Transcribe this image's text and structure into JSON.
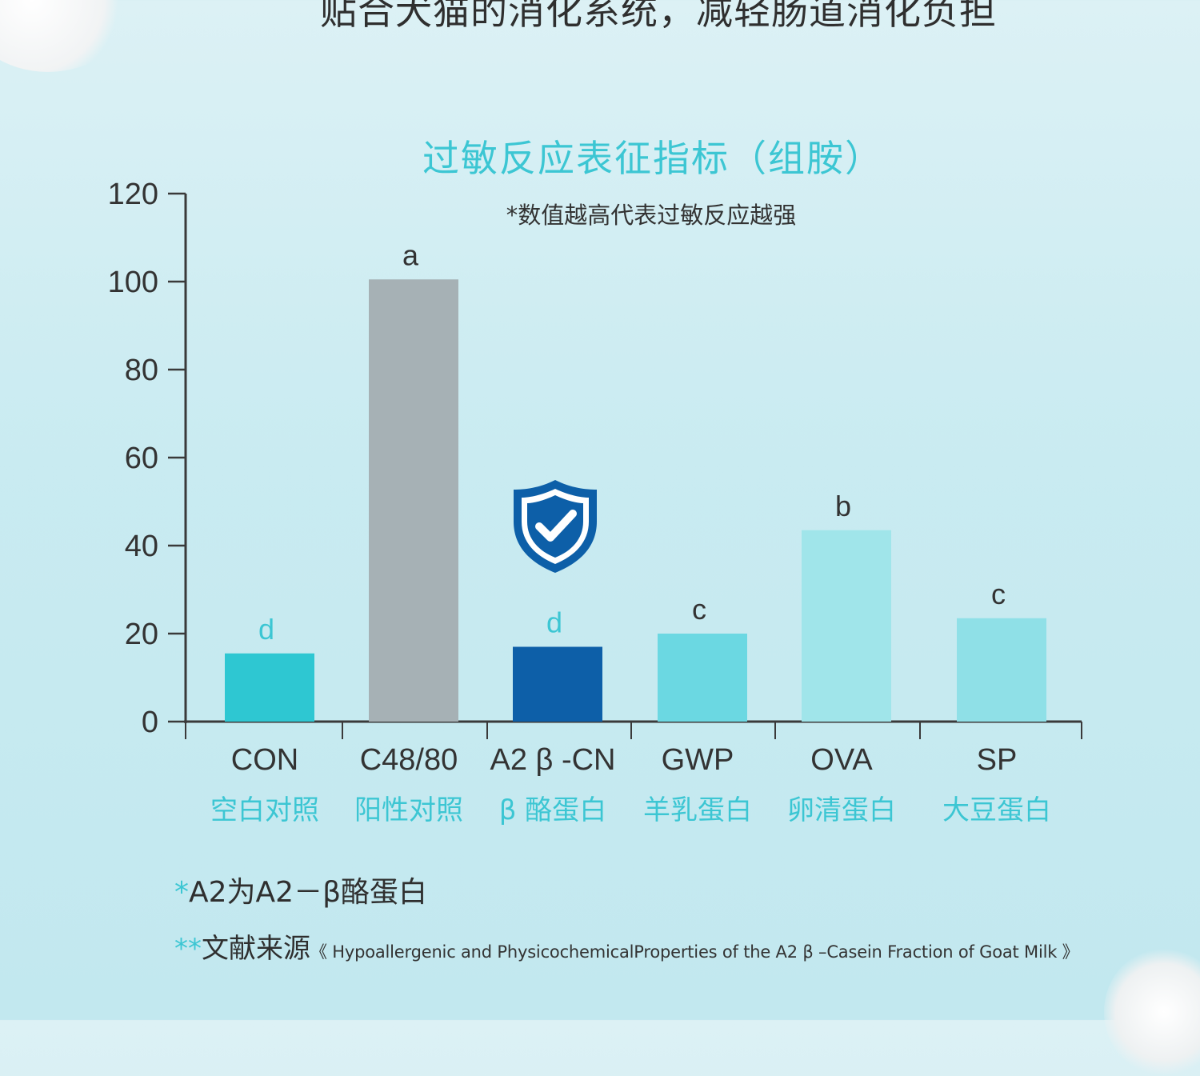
{
  "page": {
    "top_headline": "贴合犬猫的消化系统，减轻肠道消化负担"
  },
  "icons": {
    "shield": "shield-check-icon"
  },
  "colors": {
    "title": "#3cc6d3",
    "axis": "#3a3a3a"
  },
  "chart_data": {
    "type": "bar",
    "title": "过敏反应表征指标（组胺）",
    "subtitle": "*数值越高代表过敏反应越强",
    "xlabel": "",
    "ylabel": "",
    "ylim": [
      0,
      120
    ],
    "yticks": [
      "0",
      "20",
      "40",
      "60",
      "80",
      "100",
      "120"
    ],
    "grid": false,
    "categories": [
      "CON",
      "C48/80",
      "A2 β -CN",
      "GWP",
      "OVA",
      "SP"
    ],
    "category_sublabels": [
      "空白对照",
      "阳性对照",
      "β 酪蛋白",
      "羊乳蛋白",
      "卵清蛋白",
      "大豆蛋白"
    ],
    "values": [
      15.5,
      100.5,
      17,
      20,
      43.5,
      23.5
    ],
    "significance_letters": [
      "d",
      "a",
      "d",
      "c",
      "b",
      "c"
    ],
    "bar_colors": [
      "#2ec7d2",
      "#a6b1b5",
      "#0d5fa8",
      "#6bd8e2",
      "#a0e5ea",
      "#8fe0e7"
    ],
    "letter_colors": [
      "#3cc6d3",
      "#333333",
      "#3cc6d3",
      "#333333",
      "#333333",
      "#333333"
    ],
    "sublabel_color": "#3cc6d3"
  },
  "footnotes": {
    "note1_star": "*",
    "note1_text": "A2为A2－β酪蛋白",
    "note2_star": "**",
    "note2_text": "文献来源",
    "note2_ref": "《 Hypoallergenic and PhysicochemicalProperties of the A2 β –Casein Fraction of Goat Milk 》"
  }
}
